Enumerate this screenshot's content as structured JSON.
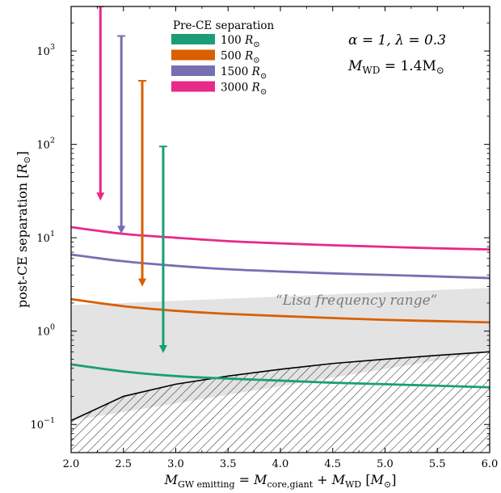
{
  "chart_data": {
    "type": "line",
    "xlabel": "M_GW emitting = M_core,giant + M_WD [M_⊙]",
    "ylabel": "post-CE separation [R_⊙]",
    "xlim": [
      2.0,
      6.0
    ],
    "ylim": [
      0.05,
      3000
    ],
    "yscale": "log",
    "x_ticks": [
      "2.0",
      "2.5",
      "3.0",
      "3.5",
      "4.0",
      "4.5",
      "5.0",
      "5.5",
      "6.0"
    ],
    "y_ticks": [
      {
        "value": 0.1,
        "label": "10",
        "exp": "−1"
      },
      {
        "value": 1,
        "label": "10",
        "exp": "0"
      },
      {
        "value": 10,
        "label": "10",
        "exp": "1"
      },
      {
        "value": 100,
        "label": "10",
        "exp": "2"
      },
      {
        "value": 1000,
        "label": "10",
        "exp": "3"
      }
    ],
    "legend": {
      "title": "Pre-CE separation",
      "location": "top-center",
      "entries": [
        {
          "value": "100",
          "unit": "R",
          "color": "#1b9e77"
        },
        {
          "value": "500",
          "unit": "R",
          "color": "#d95f02"
        },
        {
          "value": "1500",
          "unit": "R",
          "color": "#7570b3"
        },
        {
          "value": "3000",
          "unit": "R",
          "color": "#e7298a"
        }
      ]
    },
    "annotations": {
      "params": "α = 1, λ = 0.3",
      "mwd_label": "M",
      "mwd_sub": "WD",
      "mwd_value": " = 1.4M",
      "lisa": "“Lisa frequency range”"
    },
    "series": [
      {
        "pre_ce": 100,
        "color": "#1b9e77",
        "x": [
          2.0,
          2.5,
          3.0,
          3.5,
          4.0,
          4.5,
          5.0,
          5.5,
          6.0
        ],
        "values": [
          0.44,
          0.37,
          0.33,
          0.31,
          0.295,
          0.28,
          0.27,
          0.26,
          0.25
        ]
      },
      {
        "pre_ce": 500,
        "color": "#d95f02",
        "x": [
          2.0,
          2.5,
          3.0,
          3.5,
          4.0,
          4.5,
          5.0,
          5.5,
          6.0
        ],
        "values": [
          2.2,
          1.85,
          1.65,
          1.53,
          1.45,
          1.38,
          1.32,
          1.28,
          1.24
        ]
      },
      {
        "pre_ce": 1500,
        "color": "#7570b3",
        "x": [
          2.0,
          2.5,
          3.0,
          3.5,
          4.0,
          4.5,
          5.0,
          5.5,
          6.0
        ],
        "values": [
          6.6,
          5.6,
          5.0,
          4.6,
          4.35,
          4.15,
          4.0,
          3.85,
          3.7
        ]
      },
      {
        "pre_ce": 3000,
        "color": "#e7298a",
        "x": [
          2.0,
          2.5,
          3.0,
          3.5,
          4.0,
          4.5,
          5.0,
          5.5,
          6.0
        ],
        "values": [
          13.0,
          11.0,
          10.0,
          9.2,
          8.7,
          8.3,
          8.0,
          7.7,
          7.5
        ]
      }
    ],
    "arrows": [
      {
        "pre_ce": 3000,
        "color": "#e7298a",
        "x": 2.28,
        "y_start": 3000,
        "y_end": 25
      },
      {
        "pre_ce": 1500,
        "color": "#7570b3",
        "x": 2.48,
        "y_start": 1450,
        "y_end": 11
      },
      {
        "pre_ce": 500,
        "color": "#d95f02",
        "x": 2.68,
        "y_start": 480,
        "y_end": 3.0
      },
      {
        "pre_ce": 100,
        "color": "#1b9e77",
        "x": 2.88,
        "y_start": 95,
        "y_end": 0.58
      }
    ],
    "lisa_band": {
      "x": [
        2.0,
        6.0
      ],
      "upper": [
        1.9,
        2.9
      ],
      "lower": [
        0.11,
        0.6
      ]
    },
    "excluded_boundary": {
      "x": [
        2.0,
        2.5,
        3.0,
        3.5,
        4.0,
        4.5,
        5.0,
        5.5,
        6.0
      ],
      "values": [
        0.11,
        0.2,
        0.27,
        0.33,
        0.39,
        0.45,
        0.5,
        0.55,
        0.6
      ]
    }
  }
}
